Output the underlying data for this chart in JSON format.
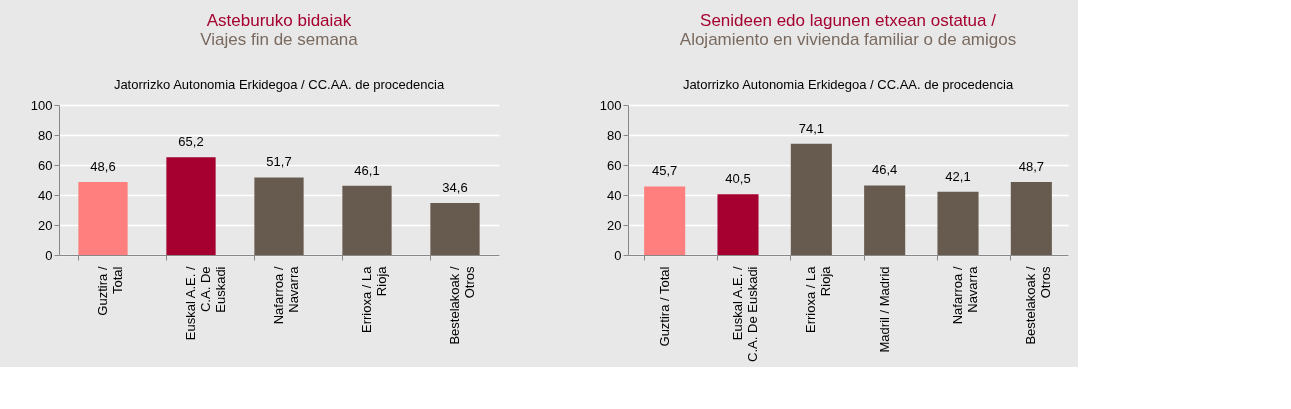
{
  "chart_data": [
    {
      "type": "bar",
      "title": "Asteburuko bidaiak",
      "subtitle": "Viajes fin de semana",
      "annotations": [
        "Jatorrizko Autonomia  Erkidegoa /  CC.AA. de procedencia"
      ],
      "categories": [
        "Guztira / Total",
        "Euskal A.E. / C.A. De Euskadi",
        "Nafarroa / Navarra",
        "Errioxa / La Rioja",
        "Bestelakoak / Otros"
      ],
      "values": [
        48.6,
        65.2,
        51.7,
        46.1,
        34.6
      ],
      "value_labels": [
        "48,6",
        "65,2",
        "51,7",
        "46,1",
        "34,6"
      ],
      "colors": [
        "#ff7f7f",
        "#a50030",
        "#675a4f",
        "#675a4f",
        "#675a4f"
      ],
      "ylim": [
        0,
        100
      ],
      "yticks": [
        0,
        20,
        40,
        60,
        80,
        100
      ],
      "grid": "y",
      "legend": false
    },
    {
      "type": "bar",
      "title": "Senideen edo lagunen etxean ostatua /",
      "subtitle": "Alojamiento en vivienda familiar o de amigos",
      "annotations": [
        "Jatorrizko Autonomia  Erkidegoa /  CC.AA. de procedencia"
      ],
      "categories": [
        "Guztira / Total",
        "Euskal A.E. / C.A. De Euskadi",
        "Errioxa / La Rioja",
        "Madril / Madrid",
        "Nafarroa / Navarra",
        "Bestelakoak / Otros"
      ],
      "values": [
        45.7,
        40.5,
        74.1,
        46.4,
        42.1,
        48.7
      ],
      "value_labels": [
        "45,7",
        "40,5",
        "74,1",
        "46,4",
        "42,1",
        "48,7"
      ],
      "colors": [
        "#ff7f7f",
        "#a50030",
        "#675a4f",
        "#675a4f",
        "#675a4f",
        "#675a4f"
      ],
      "ylim": [
        0,
        100
      ],
      "yticks": [
        0,
        20,
        40,
        60,
        80,
        100
      ],
      "grid": "y",
      "legend": false
    }
  ]
}
